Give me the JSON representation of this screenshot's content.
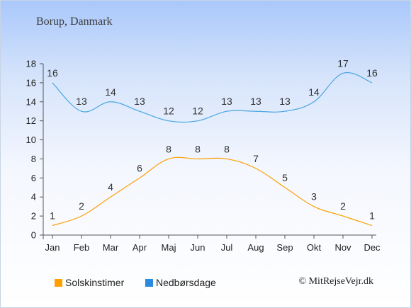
{
  "title": "Borup, Danmark",
  "credit": "© MitRejseVejr.dk",
  "legend": {
    "sun_label": "Solskinstimer",
    "rain_label": "Nedbørsdage"
  },
  "colors": {
    "sun": "#ffa000",
    "rain": "#2a8ae0",
    "rain_line": "#4aa6e2"
  },
  "chart_data": {
    "type": "line",
    "categories": [
      "Jan",
      "Feb",
      "Mar",
      "Apr",
      "Maj",
      "Jun",
      "Jul",
      "Aug",
      "Sep",
      "Okt",
      "Nov",
      "Dec"
    ],
    "ylim": [
      0,
      18
    ],
    "yticks": [
      0,
      2,
      4,
      6,
      8,
      10,
      12,
      14,
      16,
      18
    ],
    "series": [
      {
        "name": "Solskinstimer",
        "values": [
          1,
          2,
          4,
          6,
          8,
          8,
          8,
          7,
          5,
          3,
          2,
          1
        ]
      },
      {
        "name": "Nedbørsdage",
        "values": [
          16,
          13,
          14,
          13,
          12,
          12,
          13,
          13,
          13,
          14,
          17,
          16
        ]
      }
    ],
    "grid": false,
    "legend_position": "bottom"
  }
}
